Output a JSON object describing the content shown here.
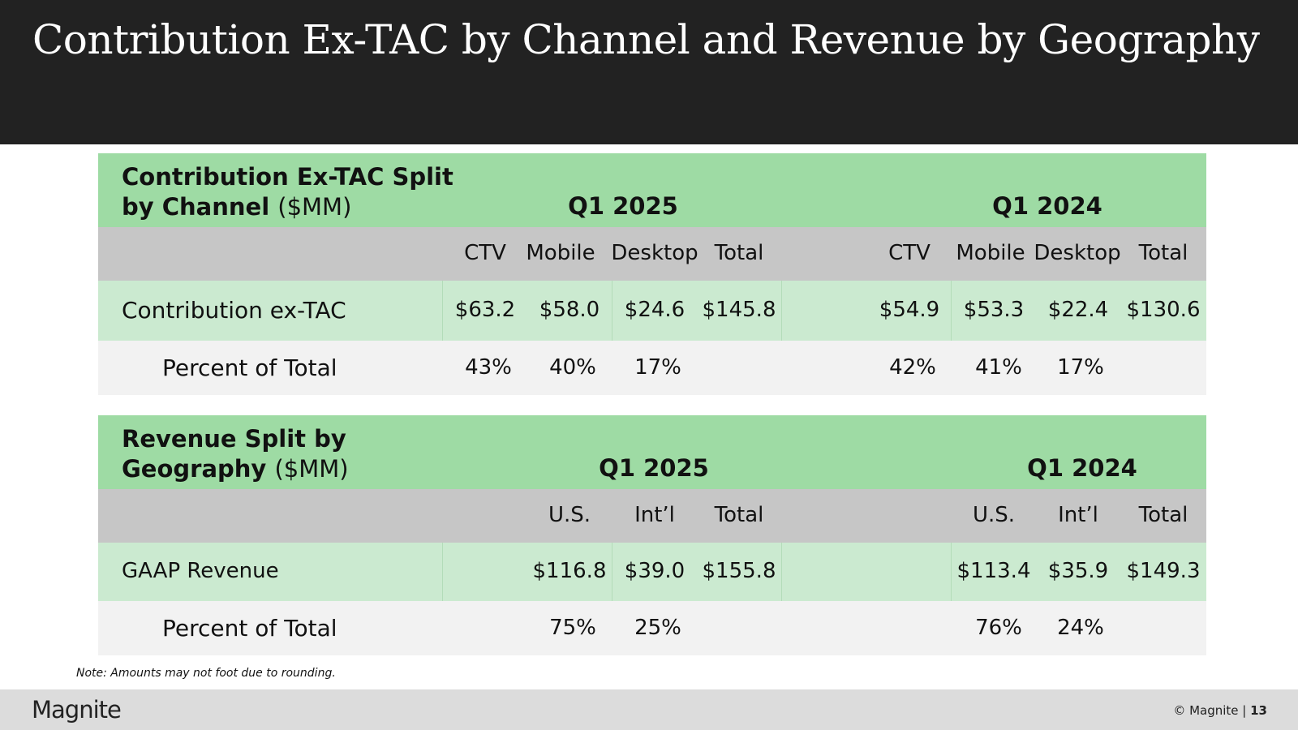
{
  "title": "Contribution Ex-TAC by Channel and Revenue by Geography",
  "channel_table": {
    "title_bold_line1": "Contribution Ex-TAC Split",
    "title_bold_line2": "by Channel",
    "title_unit": "($MM)",
    "period_current": "Q1 2025",
    "period_prior": "Q1 2024",
    "columns_current": [
      "CTV",
      "Mobile",
      "Desktop",
      "Total"
    ],
    "columns_prior": [
      "CTV",
      "Mobile",
      "Desktop",
      "Total"
    ],
    "value_row": {
      "label": "Contribution ex-TAC",
      "current": [
        "$63.2",
        "$58.0",
        "$24.6",
        "$145.8"
      ],
      "prior": [
        "$54.9",
        "$53.3",
        "$22.4",
        "$130.6"
      ]
    },
    "pct_row": {
      "label": "Percent of Total",
      "current": [
        "43%",
        "40%",
        "17%"
      ],
      "prior": [
        "42%",
        "41%",
        "17%"
      ]
    }
  },
  "geo_table": {
    "title_bold_line1": "Revenue Split by",
    "title_bold_line2": "Geography",
    "title_unit": "($MM)",
    "period_current": "Q1 2025",
    "period_prior": "Q1 2024",
    "columns_current": [
      "U.S.",
      "Int’l",
      "Total"
    ],
    "columns_prior": [
      "U.S.",
      "Int’l",
      "Total"
    ],
    "value_row": {
      "label": "GAAP Revenue",
      "current": [
        "$116.8",
        "$39.0",
        "$155.8"
      ],
      "prior": [
        "$113.4",
        "$35.9",
        "$149.3"
      ]
    },
    "pct_row": {
      "label": "Percent of Total",
      "current": [
        "75%",
        "25%"
      ],
      "prior": [
        "76%",
        "24%"
      ]
    }
  },
  "note": "Note: Amounts may not foot due to rounding.",
  "footer": {
    "logo": "Magnite",
    "copyright": "© Magnite | ",
    "page_number": "13"
  }
}
